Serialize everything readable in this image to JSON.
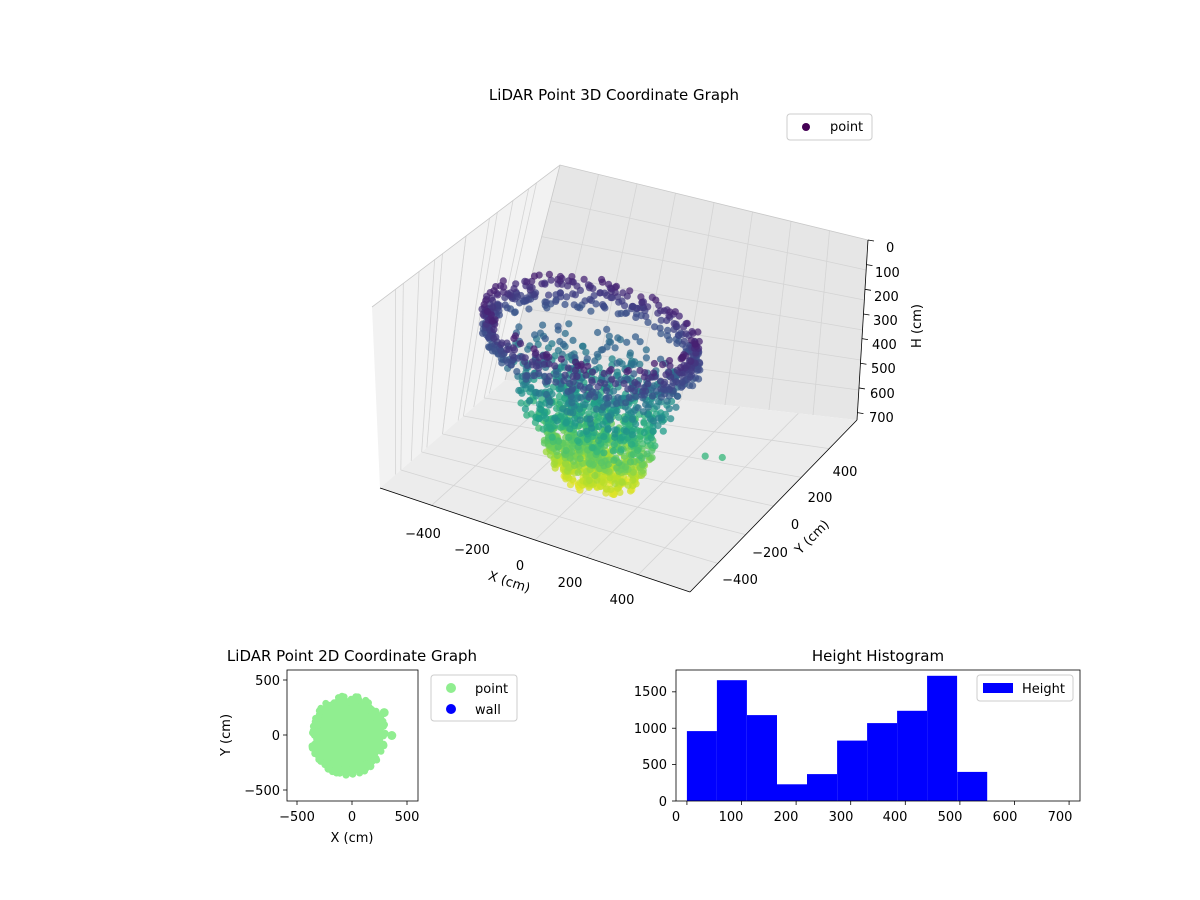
{
  "chart_data": [
    {
      "type": "scatter3d",
      "title": "LiDAR Point 3D Coordinate Graph",
      "xlabel": "X (cm)",
      "ylabel": "Y (cm)",
      "zlabel": "H (cm)",
      "xlim": [
        -550,
        550
      ],
      "ylim": [
        -550,
        550
      ],
      "zlim": [
        0,
        720
      ],
      "z_inverted": true,
      "xticks": [
        "−400",
        "−200",
        "0",
        "200",
        "400"
      ],
      "yticks": [
        "−400",
        "−200",
        "0",
        "200",
        "400"
      ],
      "zticks": [
        "0",
        "100",
        "200",
        "300",
        "400",
        "500",
        "600",
        "700"
      ],
      "legend": {
        "entries": [
          "point"
        ],
        "location": "upper-right"
      },
      "colormap": "viridis",
      "color_by": "height",
      "grid": true,
      "series": [
        {
          "name": "point",
          "color": "#440154"
        }
      ]
    },
    {
      "type": "scatter",
      "title": "LiDAR Point 2D Coordinate Graph",
      "xlabel": "X (cm)",
      "ylabel": "Y (cm)",
      "xlim": [
        -600,
        600
      ],
      "ylim": [
        -600,
        600
      ],
      "xticks": [
        "−500",
        "0",
        "500"
      ],
      "yticks": [
        "−500",
        "0",
        "500"
      ],
      "legend": {
        "entries": [
          "point",
          "wall"
        ],
        "location": "outside-right"
      },
      "series": [
        {
          "name": "point",
          "color": "#90ee90",
          "shape": "disc",
          "extent_x": [
            -380,
            300
          ],
          "extent_y": [
            -360,
            360
          ],
          "outliers": [
            {
              "x": 290,
              "y": 210
            },
            {
              "x": 360,
              "y": 0
            }
          ]
        },
        {
          "name": "wall",
          "color": "#0000ff",
          "points": []
        }
      ]
    },
    {
      "type": "histogram",
      "title": "Height Histogram",
      "xlim": [
        -20,
        720
      ],
      "ylim": [
        0,
        1800
      ],
      "xticks": [
        "0",
        "100",
        "200",
        "300",
        "400",
        "500",
        "600",
        "700"
      ],
      "yticks": [
        "0",
        "500",
        "1000",
        "1500"
      ],
      "legend": {
        "entries": [
          "Height"
        ],
        "location": "upper-right"
      },
      "series": [
        {
          "name": "Height",
          "color": "#0000ff",
          "bins": [
            {
              "from": 0,
              "to": 55,
              "count": 960
            },
            {
              "from": 55,
              "to": 110,
              "count": 1660
            },
            {
              "from": 110,
              "to": 165,
              "count": 1180
            },
            {
              "from": 165,
              "to": 220,
              "count": 230
            },
            {
              "from": 220,
              "to": 275,
              "count": 370
            },
            {
              "from": 275,
              "to": 330,
              "count": 830
            },
            {
              "from": 330,
              "to": 385,
              "count": 1070
            },
            {
              "from": 385,
              "to": 440,
              "count": 1240
            },
            {
              "from": 440,
              "to": 495,
              "count": 1720
            },
            {
              "from": 495,
              "to": 550,
              "count": 400
            }
          ]
        }
      ]
    }
  ]
}
